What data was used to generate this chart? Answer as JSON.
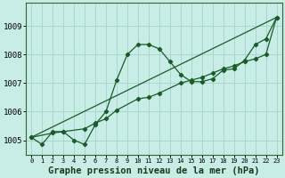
{
  "title": "",
  "xlabel": "Graphe pression niveau de la mer (hPa)",
  "ylabel": "",
  "background_color": "#c8ece6",
  "grid_color": "#a8d8cc",
  "line_color": "#1a5c28",
  "xlim": [
    -0.5,
    23.5
  ],
  "ylim": [
    1004.5,
    1009.8
  ],
  "yticks": [
    1005,
    1006,
    1007,
    1008,
    1009
  ],
  "xticks": [
    0,
    1,
    2,
    3,
    4,
    5,
    6,
    7,
    8,
    9,
    10,
    11,
    12,
    13,
    14,
    15,
    16,
    17,
    18,
    19,
    20,
    21,
    22,
    23
  ],
  "line1_x": [
    0,
    1,
    2,
    3,
    4,
    5,
    6,
    7,
    8,
    9,
    10,
    11,
    12,
    13,
    14,
    15,
    16,
    17,
    18,
    19,
    20,
    21,
    22,
    23
  ],
  "line1_y": [
    1005.1,
    1004.85,
    1005.3,
    1005.3,
    1005.0,
    1004.85,
    1005.55,
    1006.0,
    1007.1,
    1008.0,
    1008.35,
    1008.35,
    1008.2,
    1007.75,
    1007.3,
    1007.05,
    1007.05,
    1007.15,
    1007.45,
    1007.5,
    1007.8,
    1008.35,
    1008.55,
    1009.3
  ],
  "line2_x": [
    0,
    2,
    3,
    5,
    6,
    7,
    8,
    10,
    11,
    12,
    14,
    15,
    16,
    17,
    18,
    19,
    20,
    21,
    22,
    23
  ],
  "line2_y": [
    1005.1,
    1005.25,
    1005.3,
    1005.4,
    1005.6,
    1005.75,
    1006.05,
    1006.45,
    1006.5,
    1006.65,
    1007.0,
    1007.1,
    1007.2,
    1007.35,
    1007.5,
    1007.6,
    1007.75,
    1007.85,
    1008.0,
    1009.3
  ],
  "line3_x": [
    0,
    23
  ],
  "line3_y": [
    1005.1,
    1009.3
  ],
  "font_family": "monospace",
  "xlabel_fontsize": 7.5,
  "tick_fontsize": 6.5
}
